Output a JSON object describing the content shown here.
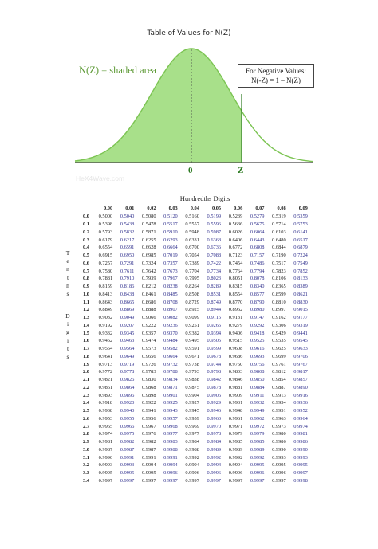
{
  "header": {
    "title": "Table of Values for N(Z)",
    "shaded_label": "N(Z) = shaded area",
    "negative_box": {
      "line1": "For Negative Values:",
      "line2": "N(-Z) = 1 – N(Z)"
    },
    "axis_zero": "0",
    "axis_z": "Z",
    "watermark": "HeX4Wave.com"
  },
  "colors": {
    "fill": "#a8e08a",
    "curve": "#7cc453",
    "axis": "#444444",
    "odd_columns": "#33338f",
    "even_columns": "#222222"
  },
  "table": {
    "column_title": "Hundredths Digits",
    "row_title": "Tenths Digits",
    "columns": [
      "0.00",
      "0.01",
      "0.02",
      "0.03",
      "0.04",
      "0.05",
      "0.06",
      "0.07",
      "0.08",
      "0.09"
    ],
    "rows": [
      {
        "z": "0.0",
        "v": [
          "0.5000",
          "0.5040",
          "0.5080",
          "0.5120",
          "0.5160",
          "0.5199",
          "0.5239",
          "0.5279",
          "0.5319",
          "0.5359"
        ]
      },
      {
        "z": "0.1",
        "v": [
          "0.5398",
          "0.5438",
          "0.5478",
          "0.5517",
          "0.5557",
          "0.5596",
          "0.5636",
          "0.5675",
          "0.5714",
          "0.5753"
        ]
      },
      {
        "z": "0.2",
        "v": [
          "0.5793",
          "0.5832",
          "0.5871",
          "0.5910",
          "0.5948",
          "0.5987",
          "0.6026",
          "0.6064",
          "0.6103",
          "0.6141"
        ]
      },
      {
        "z": "0.3",
        "v": [
          "0.6179",
          "0.6217",
          "0.6255",
          "0.6293",
          "0.6331",
          "0.6368",
          "0.6406",
          "0.6443",
          "0.6480",
          "0.6517"
        ]
      },
      {
        "z": "0.4",
        "v": [
          "0.6554",
          "0.6591",
          "0.6628",
          "0.6664",
          "0.6700",
          "0.6736",
          "0.6772",
          "0.6808",
          "0.6844",
          "0.6879"
        ]
      },
      {
        "z": "0.5",
        "v": [
          "0.6915",
          "0.6950",
          "0.6985",
          "0.7019",
          "0.7054",
          "0.7088",
          "0.7123",
          "0.7157",
          "0.7190",
          "0.7224"
        ]
      },
      {
        "z": "0.6",
        "v": [
          "0.7257",
          "0.7291",
          "0.7324",
          "0.7357",
          "0.7389",
          "0.7422",
          "0.7454",
          "0.7486",
          "0.7517",
          "0.7549"
        ]
      },
      {
        "z": "0.7",
        "v": [
          "0.7580",
          "0.7611",
          "0.7642",
          "0.7673",
          "0.7704",
          "0.7734",
          "0.7764",
          "0.7794",
          "0.7823",
          "0.7852"
        ]
      },
      {
        "z": "0.8",
        "v": [
          "0.7881",
          "0.7910",
          "0.7939",
          "0.7967",
          "0.7995",
          "0.8023",
          "0.8051",
          "0.8078",
          "0.8106",
          "0.8133"
        ]
      },
      {
        "z": "0.9",
        "v": [
          "0.8159",
          "0.8186",
          "0.8212",
          "0.8238",
          "0.8264",
          "0.8289",
          "0.8315",
          "0.8340",
          "0.8365",
          "0.8389"
        ]
      },
      {
        "z": "1.0",
        "v": [
          "0.8413",
          "0.8438",
          "0.8461",
          "0.8485",
          "0.8508",
          "0.8531",
          "0.8554",
          "0.8577",
          "0.8599",
          "0.8621"
        ]
      },
      {
        "z": "1.1",
        "v": [
          "0.8643",
          "0.8665",
          "0.8686",
          "0.8708",
          "0.8729",
          "0.8749",
          "0.8770",
          "0.8790",
          "0.8810",
          "0.8830"
        ]
      },
      {
        "z": "1.2",
        "v": [
          "0.8849",
          "0.8869",
          "0.8888",
          "0.8907",
          "0.8925",
          "0.8944",
          "0.8962",
          "0.8980",
          "0.8997",
          "0.9015"
        ]
      },
      {
        "z": "1.3",
        "v": [
          "0.9032",
          "0.9049",
          "0.9066",
          "0.9082",
          "0.9099",
          "0.9115",
          "0.9131",
          "0.9147",
          "0.9162",
          "0.9177"
        ]
      },
      {
        "z": "1.4",
        "v": [
          "0.9192",
          "0.9207",
          "0.9222",
          "0.9236",
          "0.9251",
          "0.9265",
          "0.9279",
          "0.9292",
          "0.9306",
          "0.9319"
        ]
      },
      {
        "z": "1.5",
        "v": [
          "0.9332",
          "0.9345",
          "0.9357",
          "0.9370",
          "0.9382",
          "0.9394",
          "0.9406",
          "0.9418",
          "0.9429",
          "0.9441"
        ]
      },
      {
        "z": "1.6",
        "v": [
          "0.9452",
          "0.9463",
          "0.9474",
          "0.9484",
          "0.9495",
          "0.9505",
          "0.9515",
          "0.9525",
          "0.9535",
          "0.9545"
        ]
      },
      {
        "z": "1.7",
        "v": [
          "0.9554",
          "0.9564",
          "0.9573",
          "0.9582",
          "0.9591",
          "0.9599",
          "0.9608",
          "0.9616",
          "0.9625",
          "0.9633"
        ]
      },
      {
        "z": "1.8",
        "v": [
          "0.9641",
          "0.9649",
          "0.9656",
          "0.9664",
          "0.9671",
          "0.9678",
          "0.9686",
          "0.9693",
          "0.9699",
          "0.9706"
        ]
      },
      {
        "z": "1.9",
        "v": [
          "0.9713",
          "0.9719",
          "0.9726",
          "0.9732",
          "0.9738",
          "0.9744",
          "0.9750",
          "0.9756",
          "0.9761",
          "0.9767"
        ]
      },
      {
        "z": "2.0",
        "v": [
          "0.9772",
          "0.9778",
          "0.9783",
          "0.9788",
          "0.9793",
          "0.9798",
          "0.9803",
          "0.9808",
          "0.9812",
          "0.9817"
        ]
      },
      {
        "z": "2.1",
        "v": [
          "0.9821",
          "0.9826",
          "0.9830",
          "0.9834",
          "0.9838",
          "0.9842",
          "0.9846",
          "0.9850",
          "0.9854",
          "0.9857"
        ]
      },
      {
        "z": "2.2",
        "v": [
          "0.9861",
          "0.9864",
          "0.9868",
          "0.9871",
          "0.9875",
          "0.9878",
          "0.9881",
          "0.9884",
          "0.9887",
          "0.9890"
        ]
      },
      {
        "z": "2.3",
        "v": [
          "0.9893",
          "0.9896",
          "0.9898",
          "0.9901",
          "0.9904",
          "0.9906",
          "0.9909",
          "0.9911",
          "0.9913",
          "0.9916"
        ]
      },
      {
        "z": "2.4",
        "v": [
          "0.9918",
          "0.9920",
          "0.9922",
          "0.9925",
          "0.9927",
          "0.9929",
          "0.9931",
          "0.9932",
          "0.9934",
          "0.9936"
        ]
      },
      {
        "z": "2.5",
        "v": [
          "0.9938",
          "0.9940",
          "0.9941",
          "0.9943",
          "0.9945",
          "0.9946",
          "0.9948",
          "0.9949",
          "0.9951",
          "0.9952"
        ]
      },
      {
        "z": "2.6",
        "v": [
          "0.9953",
          "0.9955",
          "0.9956",
          "0.9957",
          "0.9959",
          "0.9960",
          "0.9961",
          "0.9962",
          "0.9963",
          "0.9964"
        ]
      },
      {
        "z": "2.7",
        "v": [
          "0.9965",
          "0.9966",
          "0.9967",
          "0.9968",
          "0.9969",
          "0.9970",
          "0.9971",
          "0.9972",
          "0.9973",
          "0.9974"
        ]
      },
      {
        "z": "2.8",
        "v": [
          "0.9974",
          "0.9975",
          "0.9976",
          "0.9977",
          "0.9977",
          "0.9978",
          "0.9979",
          "0.9979",
          "0.9980",
          "0.9981"
        ]
      },
      {
        "z": "2.9",
        "v": [
          "0.9981",
          "0.9982",
          "0.9982",
          "0.9983",
          "0.9984",
          "0.9984",
          "0.9985",
          "0.9985",
          "0.9986",
          "0.9986"
        ]
      },
      {
        "z": "3.0",
        "v": [
          "0.9987",
          "0.9987",
          "0.9987",
          "0.9988",
          "0.9988",
          "0.9989",
          "0.9989",
          "0.9989",
          "0.9990",
          "0.9990"
        ]
      },
      {
        "z": "3.1",
        "v": [
          "0.9990",
          "0.9991",
          "0.9991",
          "0.9991",
          "0.9992",
          "0.9992",
          "0.9992",
          "0.9992",
          "0.9993",
          "0.9993"
        ]
      },
      {
        "z": "3.2",
        "v": [
          "0.9993",
          "0.9993",
          "0.9994",
          "0.9994",
          "0.9994",
          "0.9994",
          "0.9994",
          "0.9995",
          "0.9995",
          "0.9995"
        ]
      },
      {
        "z": "3.3",
        "v": [
          "0.9995",
          "0.9995",
          "0.9995",
          "0.9996",
          "0.9996",
          "0.9996",
          "0.9996",
          "0.9996",
          "0.9996",
          "0.9997"
        ]
      },
      {
        "z": "3.4",
        "v": [
          "0.9997",
          "0.9997",
          "0.9997",
          "0.9997",
          "0.9997",
          "0.9997",
          "0.9997",
          "0.9997",
          "0.9997",
          "0.9998"
        ]
      }
    ]
  }
}
